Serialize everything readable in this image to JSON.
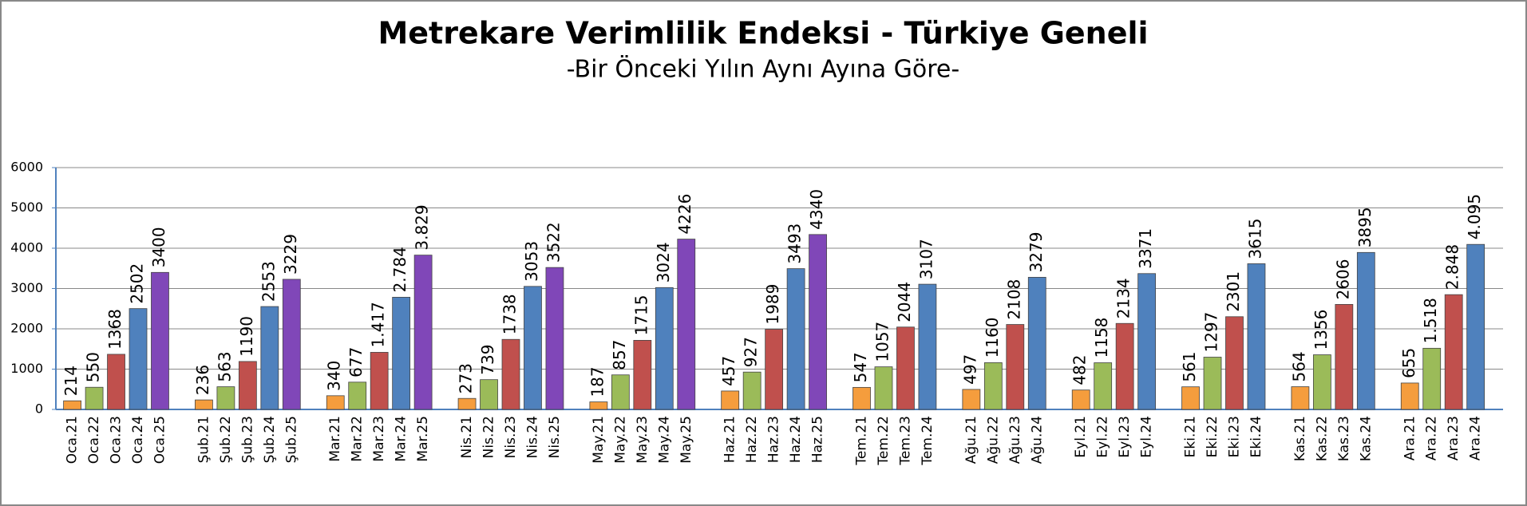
{
  "chart_data": {
    "type": "bar",
    "title": "Metrekare Verimlilik Endeksi - Türkiye Geneli",
    "subtitle": "-Bir Önceki Yılın Aynı Ayına Göre-",
    "ylim": [
      0,
      6000
    ],
    "yticks": [
      0,
      1000,
      2000,
      3000,
      4000,
      5000,
      6000
    ],
    "grid": true,
    "colors": [
      "#f59d3d",
      "#9bbb59",
      "#c0504d",
      "#4f81bd",
      "#8047b8"
    ],
    "groups": [
      {
        "labels": [
          "Oca.21",
          "Oca.22",
          "Oca.23",
          "Oca.24",
          "Oca.25"
        ],
        "values": [
          214,
          550,
          1368,
          2502,
          3400
        ],
        "value_labels": [
          "214",
          "550",
          "1368",
          "2502",
          "3400"
        ]
      },
      {
        "labels": [
          "Şub.21",
          "Şub.22",
          "Şub.23",
          "Şub.24",
          "Şub.25"
        ],
        "values": [
          236,
          563,
          1190,
          2553,
          3229
        ],
        "value_labels": [
          "236",
          "563",
          "1190",
          "2553",
          "3229"
        ]
      },
      {
        "labels": [
          "Mar.21",
          "Mar.22",
          "Mar.23",
          "Mar.24",
          "Mar.25"
        ],
        "values": [
          340,
          677,
          1417,
          2784,
          3829
        ],
        "value_labels": [
          "340",
          "677",
          "1.417",
          "2.784",
          "3.829"
        ]
      },
      {
        "labels": [
          "Nis.21",
          "Nis.22",
          "Nis.23",
          "Nis.24",
          "Nis.25"
        ],
        "values": [
          273,
          739,
          1738,
          3053,
          3522
        ],
        "value_labels": [
          "273",
          "739",
          "1738",
          "3053",
          "3522"
        ]
      },
      {
        "labels": [
          "May.21",
          "May.22",
          "May.23",
          "May.24",
          "May.25"
        ],
        "values": [
          187,
          857,
          1715,
          3024,
          4226
        ],
        "value_labels": [
          "187",
          "857",
          "1715",
          "3024",
          "4226"
        ]
      },
      {
        "labels": [
          "Haz.21",
          "Haz.22",
          "Haz.23",
          "Haz.24",
          "Haz.25"
        ],
        "values": [
          457,
          927,
          1989,
          3493,
          4340
        ],
        "value_labels": [
          "457",
          "927",
          "1989",
          "3493",
          "4340"
        ]
      },
      {
        "labels": [
          "Tem.21",
          "Tem.22",
          "Tem.23",
          "Tem.24"
        ],
        "values": [
          547,
          1057,
          2044,
          3107
        ],
        "value_labels": [
          "547",
          "1057",
          "2044",
          "3107"
        ]
      },
      {
        "labels": [
          "Ağu.21",
          "Ağu.22",
          "Ağu.23",
          "Ağu.24"
        ],
        "values": [
          497,
          1160,
          2108,
          3279
        ],
        "value_labels": [
          "497",
          "1160",
          "2108",
          "3279"
        ]
      },
      {
        "labels": [
          "Eyl.21",
          "Eyl.22",
          "Eyl.23",
          "Eyl.24"
        ],
        "values": [
          482,
          1158,
          2134,
          3371
        ],
        "value_labels": [
          "482",
          "1158",
          "2134",
          "3371"
        ]
      },
      {
        "labels": [
          "Eki.21",
          "Eki.22",
          "Eki.23",
          "Eki.24"
        ],
        "values": [
          561,
          1297,
          2301,
          3615
        ],
        "value_labels": [
          "561",
          "1297",
          "2301",
          "3615"
        ]
      },
      {
        "labels": [
          "Kas.21",
          "Kas.22",
          "Kas.23",
          "Kas.24"
        ],
        "values": [
          564,
          1356,
          2606,
          3895
        ],
        "value_labels": [
          "564",
          "1356",
          "2606",
          "3895"
        ]
      },
      {
        "labels": [
          "Ara.21",
          "Ara.22",
          "Ara.23",
          "Ara.24"
        ],
        "values": [
          655,
          1518,
          2848,
          4095
        ],
        "value_labels": [
          "655",
          "1.518",
          "2.848",
          "4.095"
        ]
      }
    ]
  }
}
